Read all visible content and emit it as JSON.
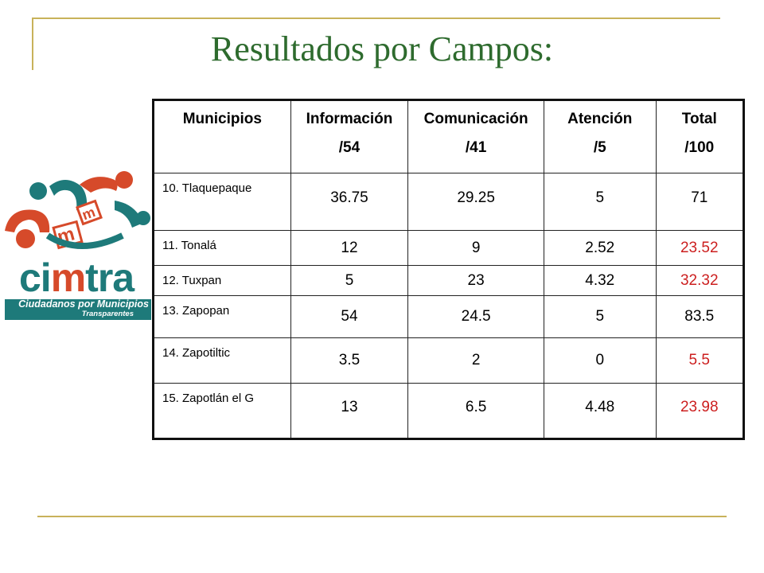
{
  "slide": {
    "title": "Resultados por Campos:"
  },
  "logo": {
    "text_ci": "ci",
    "text_m": "m",
    "text_tra": "tra",
    "tagline": "Ciudadanos por Municipios",
    "tagline2": "Transparentes",
    "colors": {
      "teal": "#1e7a7a",
      "orange": "#d64a2a"
    }
  },
  "table": {
    "headers": [
      {
        "line1": "Municipios",
        "line2": ""
      },
      {
        "line1": "Información",
        "line2": "/54"
      },
      {
        "line1": "Comunicación",
        "line2": "/41"
      },
      {
        "line1": "Atención",
        "line2": "/5"
      },
      {
        "line1": "Total",
        "line2": "/100"
      }
    ],
    "rows": [
      {
        "municipio": "10. Tlaquepaque",
        "informacion": "36.75",
        "comunicacion": "29.25",
        "atencion": "5",
        "total": "71",
        "total_red": false
      },
      {
        "municipio": "11. Tonalá",
        "informacion": "12",
        "comunicacion": "9",
        "atencion": "2.52",
        "total": "23.52",
        "total_red": true
      },
      {
        "municipio": "12. Tuxpan",
        "informacion": "5",
        "comunicacion": "23",
        "atencion": "4.32",
        "total": "32.32",
        "total_red": true
      },
      {
        "municipio": "13. Zapopan",
        "informacion": "54",
        "comunicacion": "24.5",
        "atencion": "5",
        "total": "83.5",
        "total_red": false
      },
      {
        "municipio": "14. Zapotiltic",
        "informacion": "3.5",
        "comunicacion": "2",
        "atencion": "0",
        "total": "5.5",
        "total_red": true
      },
      {
        "municipio": "15. Zapotlán el G",
        "informacion": "13",
        "comunicacion": "6.5",
        "atencion": "4.48",
        "total": "23.98",
        "total_red": true
      }
    ],
    "colors": {
      "highlight": "#cc1f1f",
      "border": "#111111"
    }
  }
}
